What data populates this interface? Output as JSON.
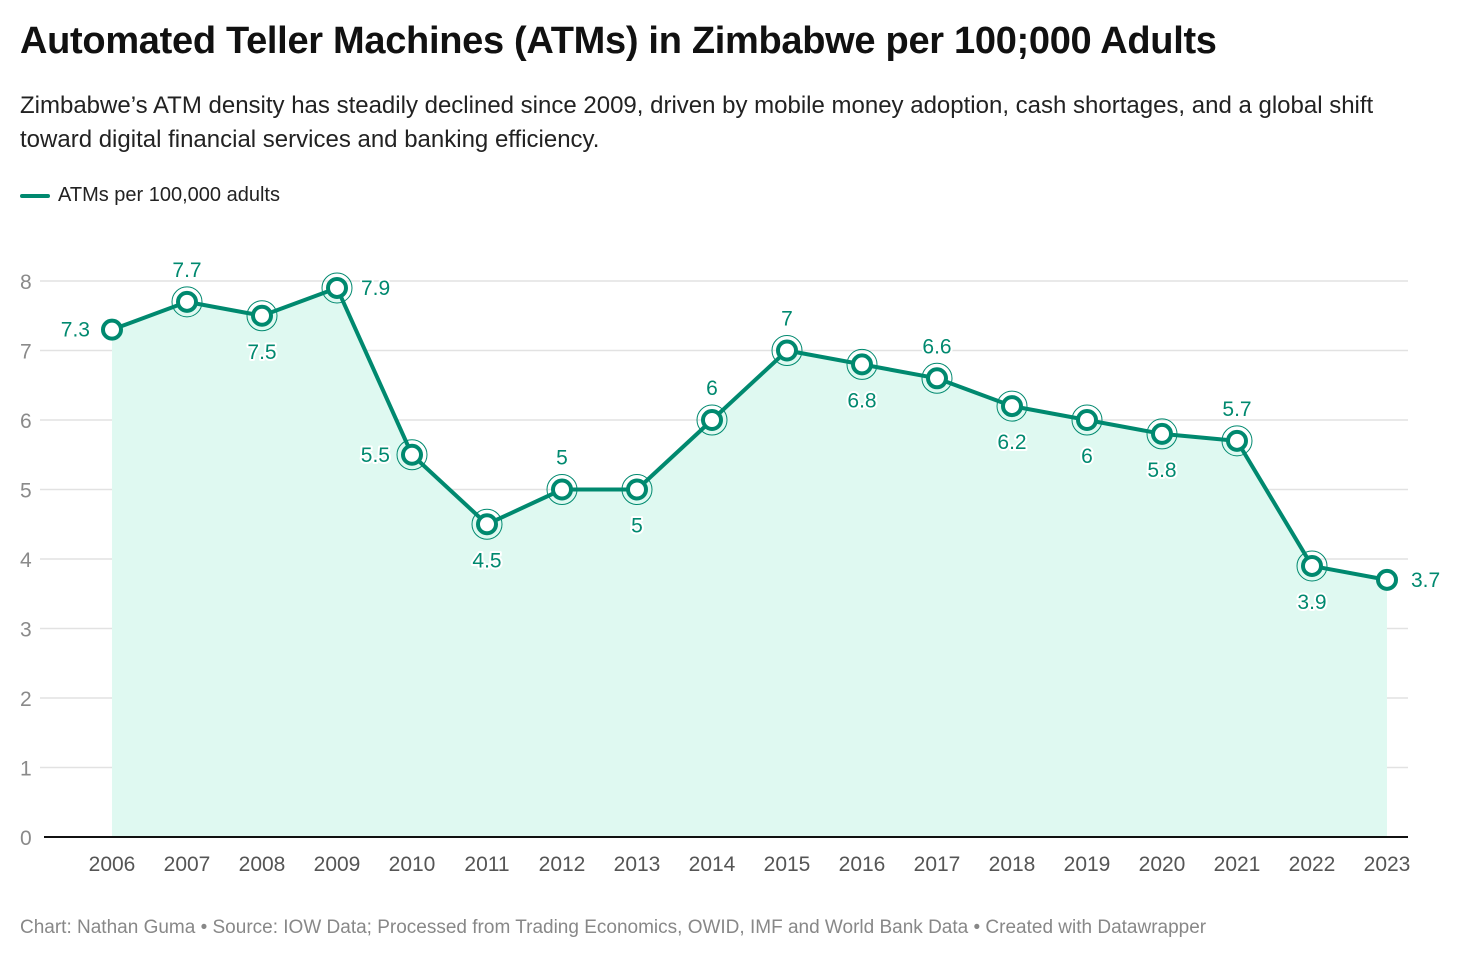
{
  "header": {
    "title": "Automated Teller Machines (ATMs) in Zimbabwe per 100;000 Adults",
    "subtitle": "Zimbabwe’s ATM density has steadily declined since 2009, driven by mobile money adoption, cash shortages, and a global shift toward digital financial services and banking efficiency."
  },
  "legend": {
    "label": "ATMs per 100,000 adults",
    "color": "#00896f"
  },
  "footer": {
    "text": "Chart: Nathan Guma  • Source: IOW Data; Processed from Trading Economics, OWID, IMF and World Bank Data • Created with Datawrapper"
  },
  "colors": {
    "line": "#00896f",
    "area": "#dff9f1",
    "grid": "#e2e2e2",
    "baseline": "#111111"
  },
  "chart_data": {
    "type": "line",
    "title": "Automated Teller Machines (ATMs) in Zimbabwe per 100;000 Adults",
    "xlabel": "",
    "ylabel": "",
    "x": [
      "2006",
      "2007",
      "2008",
      "2009",
      "2010",
      "2011",
      "2012",
      "2013",
      "2014",
      "2015",
      "2016",
      "2017",
      "2018",
      "2019",
      "2020",
      "2021",
      "2022",
      "2023"
    ],
    "series": [
      {
        "name": "ATMs per 100,000 adults",
        "values": [
          7.3,
          7.7,
          7.5,
          7.9,
          5.5,
          4.5,
          5,
          5,
          6,
          7,
          6.8,
          6.6,
          6.2,
          6,
          5.8,
          5.7,
          3.9,
          3.7
        ],
        "labels": [
          "7.3",
          "7.7",
          "7.5",
          "7.9",
          "5.5",
          "4.5",
          "5",
          "5",
          "6",
          "7",
          "6.8",
          "6.6",
          "6.2",
          "6",
          "5.8",
          "5.7",
          "3.9",
          "3.7"
        ],
        "label_positions": [
          "left",
          "above",
          "below",
          "right",
          "left",
          "below",
          "above",
          "below",
          "above",
          "above",
          "below",
          "above",
          "below",
          "below",
          "below",
          "above",
          "below",
          "right"
        ],
        "area_fill": true
      }
    ],
    "ylim": [
      0,
      8
    ],
    "yticks": [
      "0",
      "1",
      "2",
      "3",
      "4",
      "5",
      "6",
      "7",
      "8"
    ],
    "grid": true,
    "legend_position": "top-left"
  }
}
